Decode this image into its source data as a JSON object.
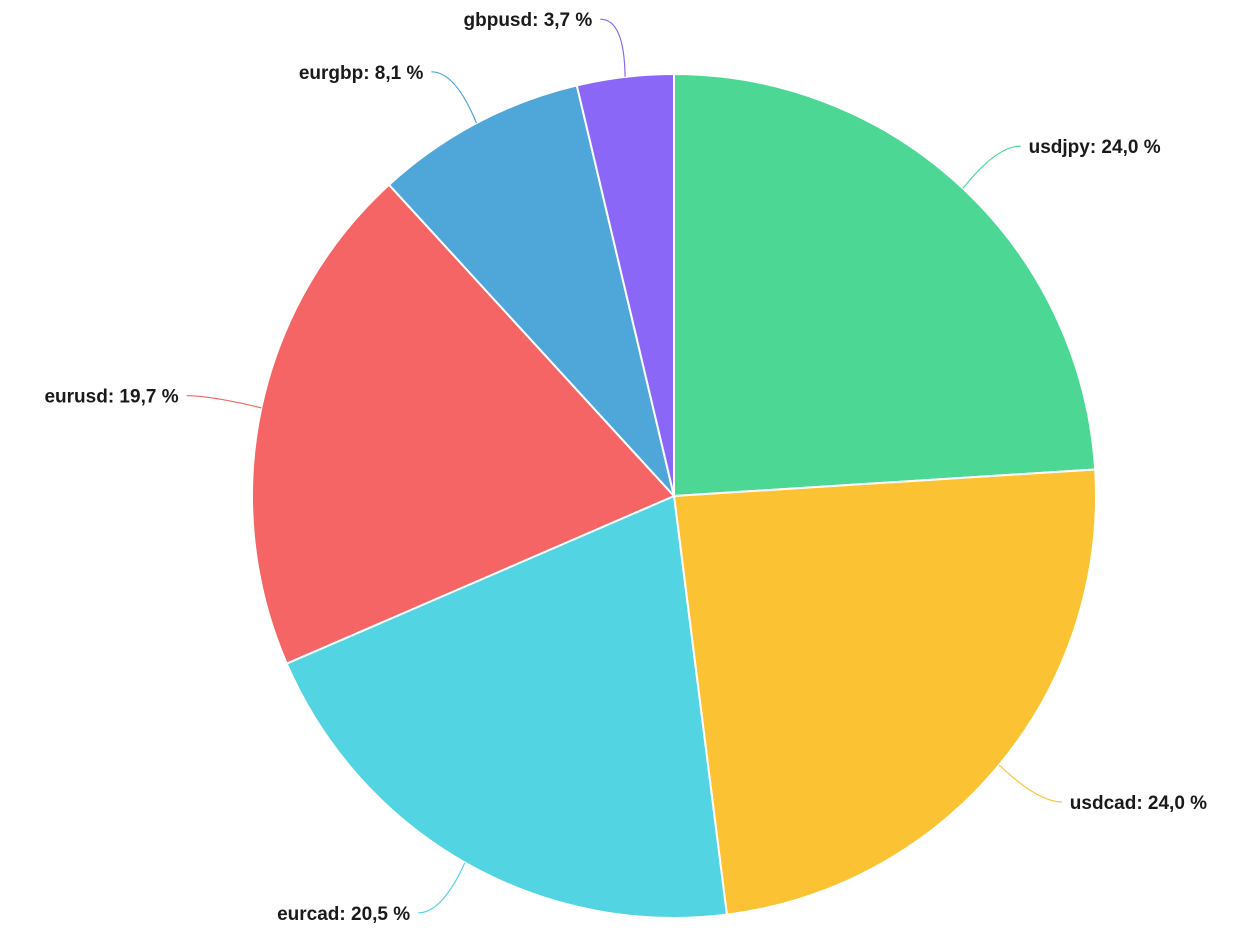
{
  "chart_data": {
    "type": "pie",
    "slices": [
      {
        "label": "usdjpy",
        "value": 24.0,
        "value_text": "24,0 %",
        "color": "#4cd794"
      },
      {
        "label": "usdcad",
        "value": 24.0,
        "value_text": "24,0 %",
        "color": "#fbc234"
      },
      {
        "label": "eurcad",
        "value": 20.5,
        "value_text": "20,5 %",
        "color": "#52d4e2"
      },
      {
        "label": "eurusd",
        "value": 19.7,
        "value_text": "19,7 %",
        "color": "#f56565"
      },
      {
        "label": "eurgbp",
        "value": 8.1,
        "value_text": "8,1 %",
        "color": "#4fa7d9"
      },
      {
        "label": "gbpusd",
        "value": 3.7,
        "value_text": "3,7 %",
        "color": "#8b67f7"
      }
    ],
    "start": "top",
    "direction": "clockwise",
    "labels": "outside with leader lines"
  }
}
